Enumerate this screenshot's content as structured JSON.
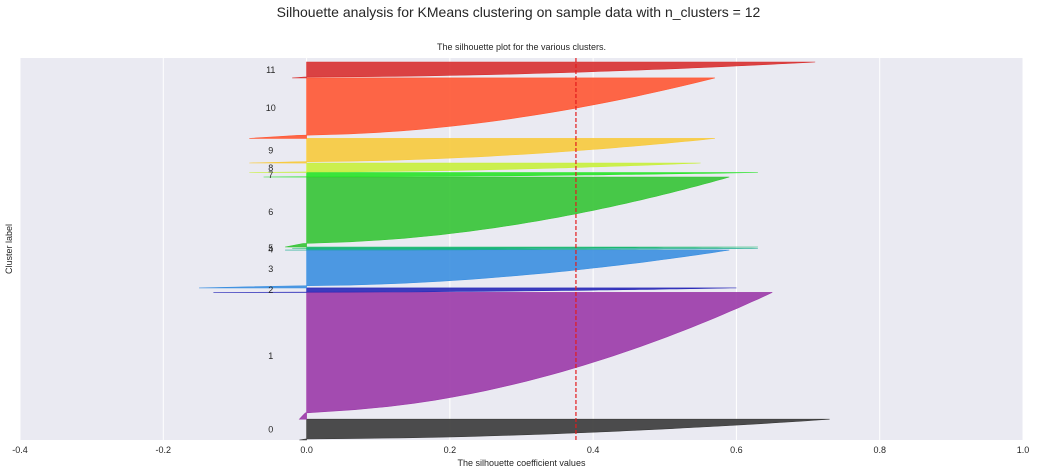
{
  "suptitle": "Silhouette analysis for KMeans clustering on sample data with n_clusters = 12",
  "chart_data": {
    "type": "area",
    "title": "The silhouette plot for the various clusters.",
    "xlabel": "The silhouette coefficient values",
    "ylabel": "Cluster label",
    "xlim": [
      -0.4,
      1.0
    ],
    "xticks": [
      "-0.4",
      "-0.2",
      "0.0",
      "0.2",
      "0.4",
      "0.6",
      "0.8",
      "1.0"
    ],
    "xtick_values": [
      -0.4,
      -0.2,
      0.0,
      0.2,
      0.4,
      0.6,
      0.8,
      1.0
    ],
    "grid": true,
    "average_silhouette_score": 0.376,
    "colors": {
      "background": "#eaeaf2",
      "grid": "#ffffff",
      "average_line": "#e31a1c"
    },
    "clusters": [
      {
        "label": "0",
        "color": "#3a3a3a",
        "size_fraction": 0.055,
        "min": -0.01,
        "max": 0.73
      },
      {
        "label": "1",
        "color": "#9b3aa8",
        "size_fraction": 0.335,
        "min": -0.01,
        "max": 0.65
      },
      {
        "label": "2",
        "color": "#2929b8",
        "size_fraction": 0.012,
        "min": -0.13,
        "max": 0.6
      },
      {
        "label": "3",
        "color": "#3b8fe0",
        "size_fraction": 0.1,
        "min": -0.15,
        "max": 0.59
      },
      {
        "label": "4",
        "color": "#16aa8e",
        "size_fraction": 0.004,
        "min": -0.03,
        "max": 0.63
      },
      {
        "label": "5",
        "color": "#1ab86f",
        "size_fraction": 0.004,
        "min": -0.02,
        "max": 0.63
      },
      {
        "label": "6",
        "color": "#35c435",
        "size_fraction": 0.185,
        "min": -0.03,
        "max": 0.59
      },
      {
        "label": "7",
        "color": "#27e327",
        "size_fraction": 0.012,
        "min": -0.06,
        "max": 0.63
      },
      {
        "label": "8",
        "color": "#c8f03c",
        "size_fraction": 0.025,
        "min": -0.08,
        "max": 0.55
      },
      {
        "label": "9",
        "color": "#f7ca3c",
        "size_fraction": 0.065,
        "min": -0.08,
        "max": 0.57
      },
      {
        "label": "10",
        "color": "#ff5733",
        "size_fraction": 0.16,
        "min": -0.08,
        "max": 0.57
      },
      {
        "label": "11",
        "color": "#d83030",
        "size_fraction": 0.042,
        "min": -0.02,
        "max": 0.71
      }
    ]
  }
}
